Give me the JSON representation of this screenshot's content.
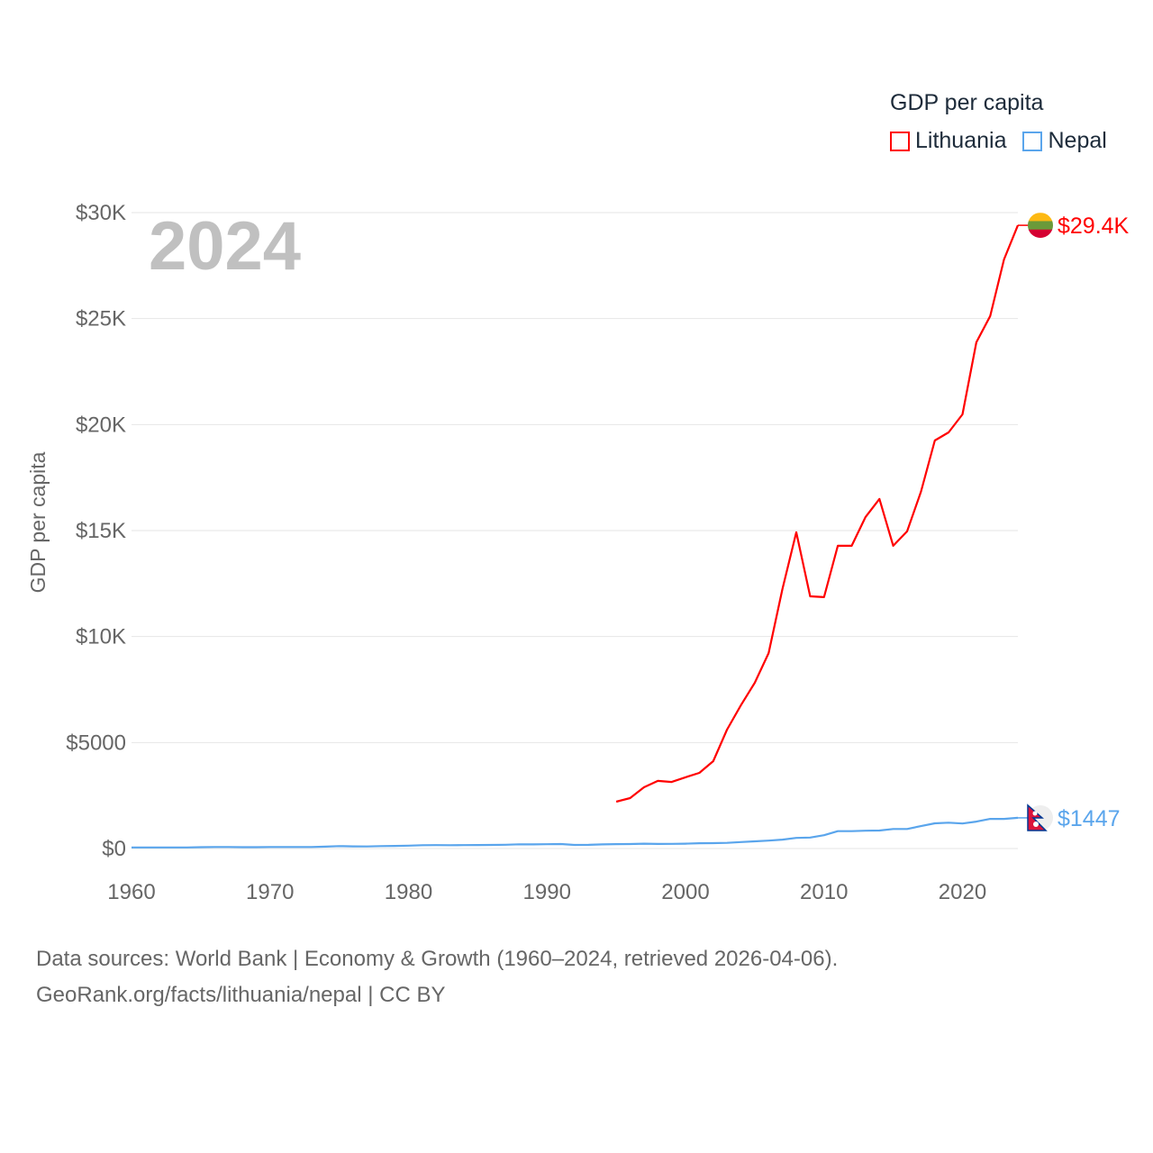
{
  "chart_data": {
    "type": "line",
    "title": "GDP per capita",
    "ylabel": "GDP per capita",
    "xlabel": "",
    "xlim": [
      1960,
      2024
    ],
    "ylim": [
      0,
      30000
    ],
    "grid": true,
    "legend_placement": "top-right",
    "x_ticks": [
      1960,
      1970,
      1980,
      1990,
      2000,
      2010,
      2020
    ],
    "x_tick_labels": [
      "1960",
      "1970",
      "1980",
      "1990",
      "2000",
      "2010",
      "2020"
    ],
    "y_ticks": [
      0,
      5000,
      10000,
      15000,
      20000,
      25000,
      30000
    ],
    "y_tick_labels": [
      "$0",
      "$5000",
      "$10K",
      "$15K",
      "$20K",
      "$25K",
      "$30K"
    ],
    "year_label": "2024",
    "series": [
      {
        "name": "Lithuania",
        "color": "#ff0000",
        "end_label": "$29.4K",
        "x": [
          1995,
          1996,
          1997,
          1998,
          1999,
          2000,
          2001,
          2002,
          2003,
          2004,
          2005,
          2006,
          2007,
          2008,
          2009,
          2010,
          2011,
          2012,
          2013,
          2014,
          2015,
          2016,
          2017,
          2018,
          2019,
          2020,
          2021,
          2022,
          2023,
          2024
        ],
        "values": [
          2210,
          2380,
          2890,
          3190,
          3140,
          3360,
          3570,
          4120,
          5610,
          6760,
          7820,
          9220,
          12240,
          14920,
          11900,
          11860,
          14280,
          14280,
          15640,
          16490,
          14280,
          14960,
          16830,
          19250,
          19630,
          20480,
          23880,
          25120,
          27790,
          29400
        ]
      },
      {
        "name": "Nepal",
        "color": "#5aa5ec",
        "end_label": "$1447",
        "x": [
          1960,
          1961,
          1962,
          1963,
          1964,
          1965,
          1966,
          1967,
          1968,
          1969,
          1970,
          1971,
          1972,
          1973,
          1974,
          1975,
          1976,
          1977,
          1978,
          1979,
          1980,
          1981,
          1982,
          1983,
          1984,
          1985,
          1986,
          1987,
          1988,
          1989,
          1990,
          1991,
          1992,
          1993,
          1994,
          1995,
          1996,
          1997,
          1998,
          1999,
          2000,
          2001,
          2002,
          2003,
          2004,
          2005,
          2006,
          2007,
          2008,
          2009,
          2010,
          2011,
          2012,
          2013,
          2014,
          2015,
          2016,
          2017,
          2018,
          2019,
          2020,
          2021,
          2022,
          2023,
          2024
        ],
        "values": [
          50,
          50,
          50,
          50,
          49,
          64,
          74,
          71,
          64,
          65,
          71,
          74,
          72,
          71,
          88,
          113,
          102,
          98,
          114,
          124,
          136,
          156,
          160,
          159,
          160,
          165,
          168,
          178,
          199,
          197,
          205,
          213,
          171,
          176,
          194,
          207,
          211,
          229,
          218,
          222,
          231,
          250,
          253,
          267,
          305,
          340,
          375,
          420,
          500,
          520,
          630,
          820,
          820,
          840,
          850,
          920,
          920,
          1060,
          1190,
          1220,
          1180,
          1270,
          1400,
          1400,
          1447
        ]
      }
    ]
  },
  "source": {
    "line1": "Data sources: World Bank | Economy & Growth (1960–2024, retrieved 2026-04-06).",
    "line2": "GeoRank.org/facts/lithuania/nepal | CC BY"
  }
}
